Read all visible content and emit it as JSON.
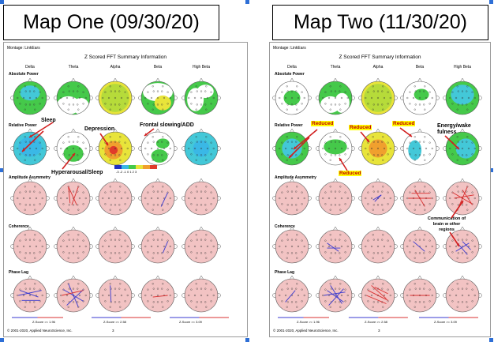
{
  "maps": [
    {
      "title": "Map One (09/30/20)",
      "montage": "Montage:  LinkEars",
      "summary_title": "Z Scored FFT Summary Information",
      "bands": [
        "Delta",
        "Theta",
        "Alpha",
        "Beta",
        "High Beta"
      ],
      "rows": [
        "Absolute Power",
        "Relative Power",
        "Amplitude Asymmetry",
        "Coherence",
        "Phase Lag"
      ],
      "annotations": [
        "Sleep",
        "Depression",
        "Frontal slowing/ADD",
        "Hyperarousal/Sleep"
      ],
      "highlights": [],
      "colorbar": "-3 -2 -1 0 1 2 3",
      "zscores": [
        "Z-Score >= 1.96",
        "Z-Score >= 2.58",
        "Z-Score >= 3.09"
      ],
      "footer": "© 2001-2020, Applied NeuroScience, Inc.",
      "page": "3"
    },
    {
      "title": "Map Two (11/30/20)",
      "montage": "Montage:  LinkEars",
      "summary_title": "Z Scored FFT Summary Information",
      "bands": [
        "Delta",
        "Theta",
        "Alpha",
        "Beta",
        "High Beta"
      ],
      "rows": [
        "Absolute Power",
        "Relative Power",
        "Amplitude Asymmetry",
        "Coherence",
        "Phase Lag"
      ],
      "annotations": [
        "Energy/wake fulness",
        "Communication of brain w other regions"
      ],
      "highlights": [
        "Reduced",
        "Reduced",
        "Reduced",
        "Reduced"
      ],
      "colorbar": "",
      "zscores": [
        "Z-Score >= 1.96",
        "Z-Score >= 2.58",
        "Z-Score >= 3.09"
      ],
      "footer": "© 2001-2020, Applied NeuroScience, Inc.",
      "page": "3"
    }
  ],
  "colors": {
    "neutral_head": "#f2c3c3",
    "green": "#45c94a",
    "cyan": "#43c8d8",
    "yellow": "#e8e43a",
    "orange": "#f0a02e",
    "red": "#e03a2a",
    "arrow": "#d11f1f",
    "blue_line": "#3a3ad0",
    "red_line": "#d93030",
    "highlight": "#ffff00",
    "handle": "#2e6fd6"
  }
}
